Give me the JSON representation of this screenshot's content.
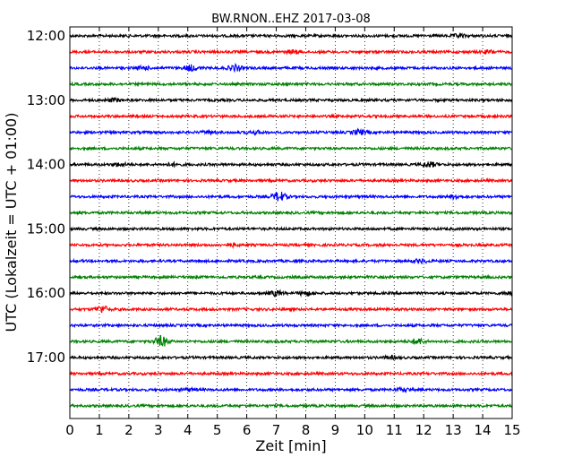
{
  "chart_data": {
    "type": "line",
    "title": "BW.RNON..EHZ 2017-03-08",
    "xlabel": "Zeit  [min]",
    "ylabel": "UTC (Lokalzeit = UTC + 01:00)",
    "xlim": [
      0,
      15
    ],
    "x_ticks": [
      "0",
      "1",
      "2",
      "3",
      "4",
      "5",
      "6",
      "7",
      "8",
      "9",
      "10",
      "11",
      "12",
      "13",
      "14",
      "15"
    ],
    "y_ticks": [
      "12:00",
      "13:00",
      "14:00",
      "15:00",
      "16:00",
      "17:00"
    ],
    "grid": "vertical dotted",
    "line_colors": [
      "#000000",
      "#ff0000",
      "#0000ff",
      "#008000"
    ],
    "series": [
      {
        "start": "12:00",
        "events": [
          {
            "x": 13.2,
            "amp": 1.5
          }
        ]
      },
      {
        "start": "12:15",
        "events": [
          {
            "x": 7.6,
            "amp": 1.5
          },
          {
            "x": 14.2,
            "amp": 1.5
          }
        ]
      },
      {
        "start": "12:30",
        "events": [
          {
            "x": 2.5,
            "amp": 1.5
          },
          {
            "x": 4.1,
            "amp": 3
          },
          {
            "x": 5.6,
            "amp": 3
          }
        ]
      },
      {
        "start": "12:45",
        "events": []
      },
      {
        "start": "13:00",
        "events": [
          {
            "x": 1.5,
            "amp": 1.6
          }
        ]
      },
      {
        "start": "13:15",
        "events": []
      },
      {
        "start": "13:30",
        "events": [
          {
            "x": 4.7,
            "amp": 1.3
          },
          {
            "x": 6.3,
            "amp": 1.3
          },
          {
            "x": 9.8,
            "amp": 2.5
          }
        ]
      },
      {
        "start": "13:45",
        "events": []
      },
      {
        "start": "14:00",
        "events": [
          {
            "x": 1.7,
            "amp": 1.5
          },
          {
            "x": 3.5,
            "amp": 1.3
          },
          {
            "x": 12.2,
            "amp": 2.5
          }
        ]
      },
      {
        "start": "14:15",
        "events": []
      },
      {
        "start": "14:30",
        "events": [
          {
            "x": 7.1,
            "amp": 5
          },
          {
            "x": 13.1,
            "amp": 2
          }
        ]
      },
      {
        "start": "14:45",
        "events": []
      },
      {
        "start": "15:00",
        "events": []
      },
      {
        "start": "15:15",
        "events": [
          {
            "x": 5.5,
            "amp": 1.3
          }
        ]
      },
      {
        "start": "15:30",
        "events": [
          {
            "x": 11.9,
            "amp": 1.8
          }
        ]
      },
      {
        "start": "15:45",
        "events": []
      },
      {
        "start": "16:00",
        "events": [
          {
            "x": 7,
            "amp": 2.5
          },
          {
            "x": 8,
            "amp": 2.2
          },
          {
            "x": 14.9,
            "amp": 1.5
          }
        ]
      },
      {
        "start": "16:15",
        "events": [
          {
            "x": 1.1,
            "amp": 3.5
          }
        ]
      },
      {
        "start": "16:30",
        "events": []
      },
      {
        "start": "16:45",
        "events": [
          {
            "x": 3.1,
            "amp": 5.5
          },
          {
            "x": 11.8,
            "amp": 3
          }
        ]
      },
      {
        "start": "17:00",
        "events": [
          {
            "x": 10.9,
            "amp": 1.3
          }
        ]
      },
      {
        "start": "17:15",
        "events": []
      },
      {
        "start": "17:30",
        "events": [
          {
            "x": 4,
            "amp": 1.3
          },
          {
            "x": 11.3,
            "amp": 1.5
          }
        ]
      },
      {
        "start": "17:45",
        "events": []
      }
    ]
  }
}
